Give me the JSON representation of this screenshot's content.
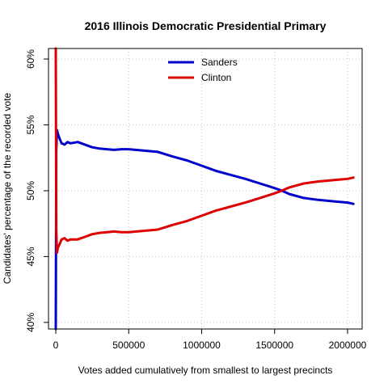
{
  "chart_data": {
    "type": "line",
    "title": "2016 Illinois Democratic Presidential Primary",
    "xlabel": "Votes added cumulatively from smallest to largest precincts",
    "ylabel": "Candidates' percentage of the recorded vote",
    "xlim": [
      -50000,
      2100000
    ],
    "ylim": [
      39.5,
      60.8
    ],
    "x_ticks": [
      0,
      500000,
      1000000,
      1500000,
      2000000
    ],
    "x_tick_labels": [
      "0",
      "500000",
      "1000000",
      "1500000",
      "2000000"
    ],
    "y_ticks": [
      40,
      45,
      50,
      55,
      60
    ],
    "y_tick_labels": [
      "40%",
      "45%",
      "50%",
      "55%",
      "60%"
    ],
    "grid": true,
    "legend_position": "top-center",
    "series": [
      {
        "name": "Sanders",
        "color": "#0000cc",
        "x": [
          0,
          3000,
          8000,
          15000,
          25000,
          40000,
          60000,
          80000,
          100000,
          150000,
          200000,
          250000,
          300000,
          350000,
          400000,
          450000,
          500000,
          600000,
          700000,
          800000,
          900000,
          1000000,
          1100000,
          1200000,
          1300000,
          1400000,
          1500000,
          1550000,
          1600000,
          1650000,
          1700000,
          1800000,
          1900000,
          2000000,
          2040000
        ],
        "values": [
          39.5,
          53.0,
          54.6,
          54.3,
          54.0,
          53.6,
          53.5,
          53.7,
          53.6,
          53.7,
          53.5,
          53.3,
          53.2,
          53.15,
          53.1,
          53.15,
          53.15,
          53.05,
          52.95,
          52.6,
          52.3,
          51.9,
          51.5,
          51.2,
          50.9,
          50.55,
          50.2,
          50.0,
          49.75,
          49.6,
          49.45,
          49.3,
          49.2,
          49.1,
          49.0
        ]
      },
      {
        "name": "Clinton",
        "color": "#dd0000",
        "x": [
          0,
          3000,
          8000,
          15000,
          25000,
          40000,
          60000,
          80000,
          100000,
          150000,
          200000,
          250000,
          300000,
          350000,
          400000,
          450000,
          500000,
          600000,
          700000,
          800000,
          900000,
          1000000,
          1100000,
          1200000,
          1300000,
          1400000,
          1500000,
          1550000,
          1600000,
          1650000,
          1700000,
          1800000,
          1900000,
          2000000,
          2040000
        ],
        "values": [
          60.8,
          47.0,
          45.3,
          45.7,
          45.9,
          46.3,
          46.4,
          46.2,
          46.3,
          46.3,
          46.5,
          46.7,
          46.8,
          46.85,
          46.9,
          46.85,
          46.85,
          46.95,
          47.05,
          47.4,
          47.7,
          48.1,
          48.5,
          48.8,
          49.1,
          49.45,
          49.8,
          50.0,
          50.25,
          50.4,
          50.55,
          50.7,
          50.8,
          50.9,
          51.0
        ]
      }
    ]
  }
}
